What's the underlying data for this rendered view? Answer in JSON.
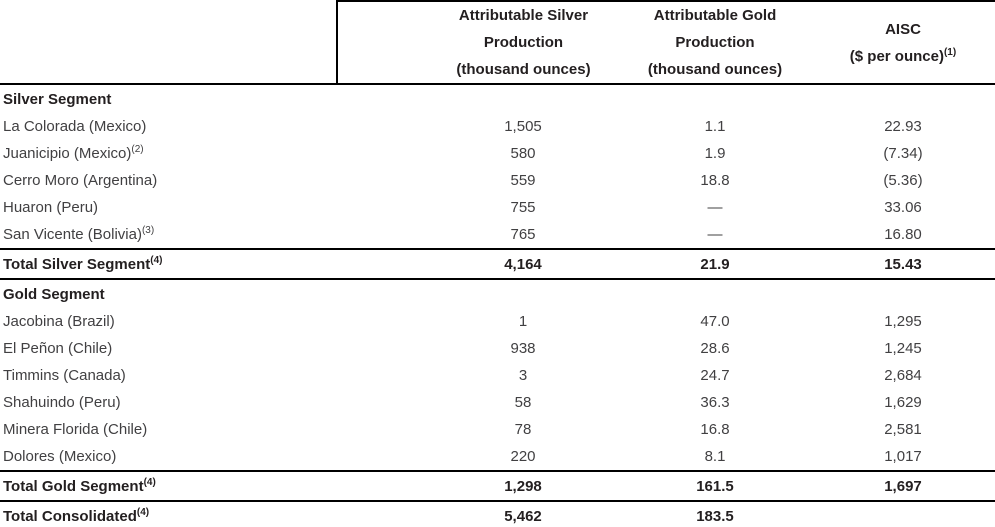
{
  "header": {
    "col_silver": {
      "line1": "Attributable Silver",
      "line2": "Production",
      "line3": "(thousand ounces)"
    },
    "col_gold": {
      "line1": "Attributable Gold",
      "line2": "Production",
      "line3": "(thousand ounces)"
    },
    "col_aisc": {
      "line1": "AISC",
      "line2": "($ per ounce)",
      "footnote": "(1)"
    }
  },
  "rows": [
    {
      "type": "section",
      "label": "Silver Segment",
      "footnote": "",
      "silver": "",
      "gold": "",
      "aisc": ""
    },
    {
      "type": "data",
      "label": "La Colorada (Mexico)",
      "footnote": "",
      "silver": "1,505",
      "gold": "1.1",
      "aisc": "22.93"
    },
    {
      "type": "data",
      "label": "Juanicipio (Mexico)",
      "footnote": "(2)",
      "silver": "580",
      "gold": "1.9",
      "aisc": "(7.34)"
    },
    {
      "type": "data",
      "label": "Cerro Moro (Argentina)",
      "footnote": "",
      "silver": "559",
      "gold": "18.8",
      "aisc": "(5.36)"
    },
    {
      "type": "data",
      "label": "Huaron (Peru)",
      "footnote": "",
      "silver": "755",
      "gold": "—",
      "aisc": "33.06"
    },
    {
      "type": "data",
      "label": "San Vicente (Bolivia)",
      "footnote": "(3)",
      "silver": "765",
      "gold": "—",
      "aisc": "16.80"
    },
    {
      "type": "total",
      "label": "Total Silver Segment",
      "footnote": "(4)",
      "silver": "4,164",
      "gold": "21.9",
      "aisc": "15.43"
    },
    {
      "type": "section",
      "label": "Gold Segment",
      "footnote": "",
      "silver": "",
      "gold": "",
      "aisc": ""
    },
    {
      "type": "data",
      "label": "Jacobina (Brazil)",
      "footnote": "",
      "silver": "1",
      "gold": "47.0",
      "aisc": "1,295"
    },
    {
      "type": "data",
      "label": "El Peñon (Chile)",
      "footnote": "",
      "silver": "938",
      "gold": "28.6",
      "aisc": "1,245"
    },
    {
      "type": "data",
      "label": "Timmins (Canada)",
      "footnote": "",
      "silver": "3",
      "gold": "24.7",
      "aisc": "2,684"
    },
    {
      "type": "data",
      "label": "Shahuindo (Peru)",
      "footnote": "",
      "silver": "58",
      "gold": "36.3",
      "aisc": "1,629"
    },
    {
      "type": "data",
      "label": "Minera Florida (Chile)",
      "footnote": "",
      "silver": "78",
      "gold": "16.8",
      "aisc": "2,581"
    },
    {
      "type": "data",
      "label": "Dolores (Mexico)",
      "footnote": "",
      "silver": "220",
      "gold": "8.1",
      "aisc": "1,017"
    },
    {
      "type": "total",
      "label": "Total Gold Segment",
      "footnote": "(4)",
      "silver": "1,298",
      "gold": "161.5",
      "aisc": "1,697"
    },
    {
      "type": "total",
      "label": "Total Consolidated",
      "footnote": "(4)",
      "silver": "5,462",
      "gold": "183.5",
      "aisc": ""
    }
  ],
  "colors": {
    "border": "#000000",
    "text": "#414042",
    "bold_text": "#231f20"
  }
}
